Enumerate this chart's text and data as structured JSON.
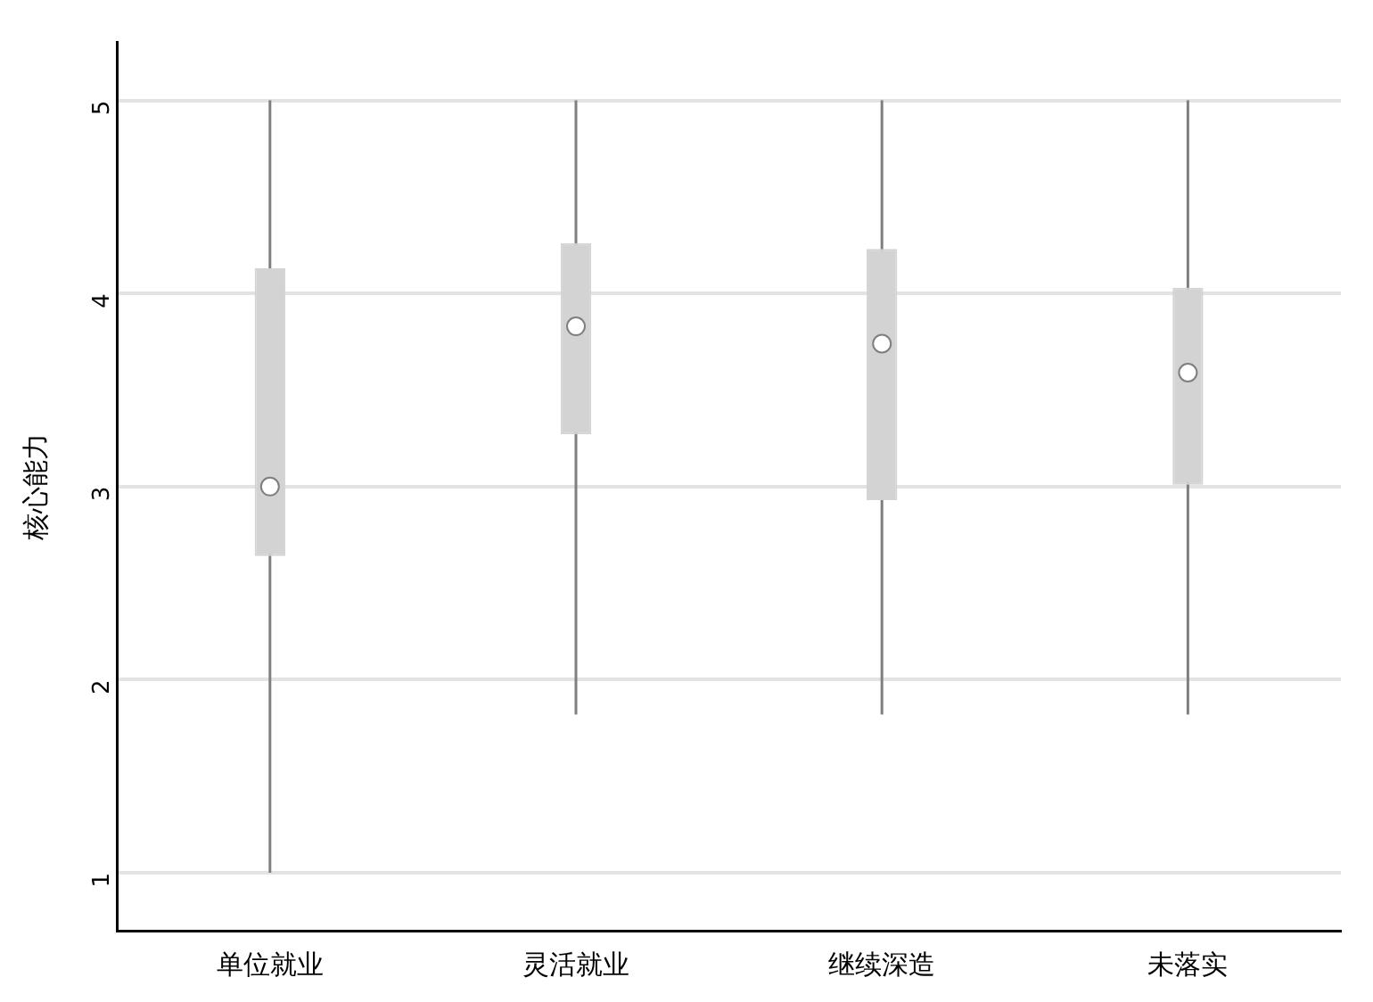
{
  "chart_data": {
    "type": "box",
    "ylabel": "核心能力",
    "categories": [
      "单位就业",
      "灵活就业",
      "继续深造",
      "未落实"
    ],
    "color": "#d3d3d3",
    "ylim": [
      0.7,
      5.3
    ],
    "yticks": [
      1,
      2,
      3,
      4,
      5
    ],
    "grid": "y",
    "legend": false,
    "boxes": [
      {
        "low": 1,
        "q1": 2.64,
        "median": 3,
        "q3": 4.13,
        "high": 5
      },
      {
        "low": 1.82,
        "q1": 3.27,
        "median": 3.83,
        "q3": 4.26,
        "high": 5
      },
      {
        "low": 1.82,
        "q1": 2.93,
        "median": 3.74,
        "q3": 4.23,
        "high": 5
      },
      {
        "low": 1.82,
        "q1": 3.01,
        "median": 3.59,
        "q3": 4.03,
        "high": 5
      }
    ]
  }
}
